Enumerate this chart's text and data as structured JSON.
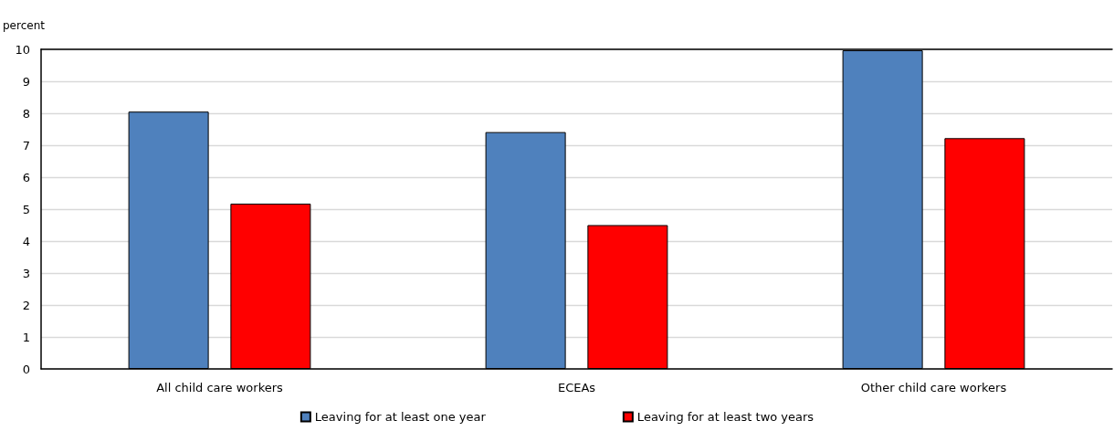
{
  "chart_data": {
    "type": "bar",
    "ylabel": "percent",
    "categories": [
      "All child care workers",
      "ECEAs",
      "Other child care workers"
    ],
    "series": [
      {
        "name": "Leaving for at least one year",
        "color": "#4f81bd",
        "values": [
          8.05,
          7.41,
          9.97
        ]
      },
      {
        "name": "Leaving for at least two years",
        "color": "#ff0000",
        "values": [
          5.17,
          4.5,
          7.22
        ]
      }
    ],
    "ylim": [
      0,
      10
    ],
    "yticks": [
      0,
      1,
      2,
      3,
      4,
      5,
      6,
      7,
      8,
      9,
      10
    ],
    "grid": "y",
    "legend": "bottom"
  }
}
